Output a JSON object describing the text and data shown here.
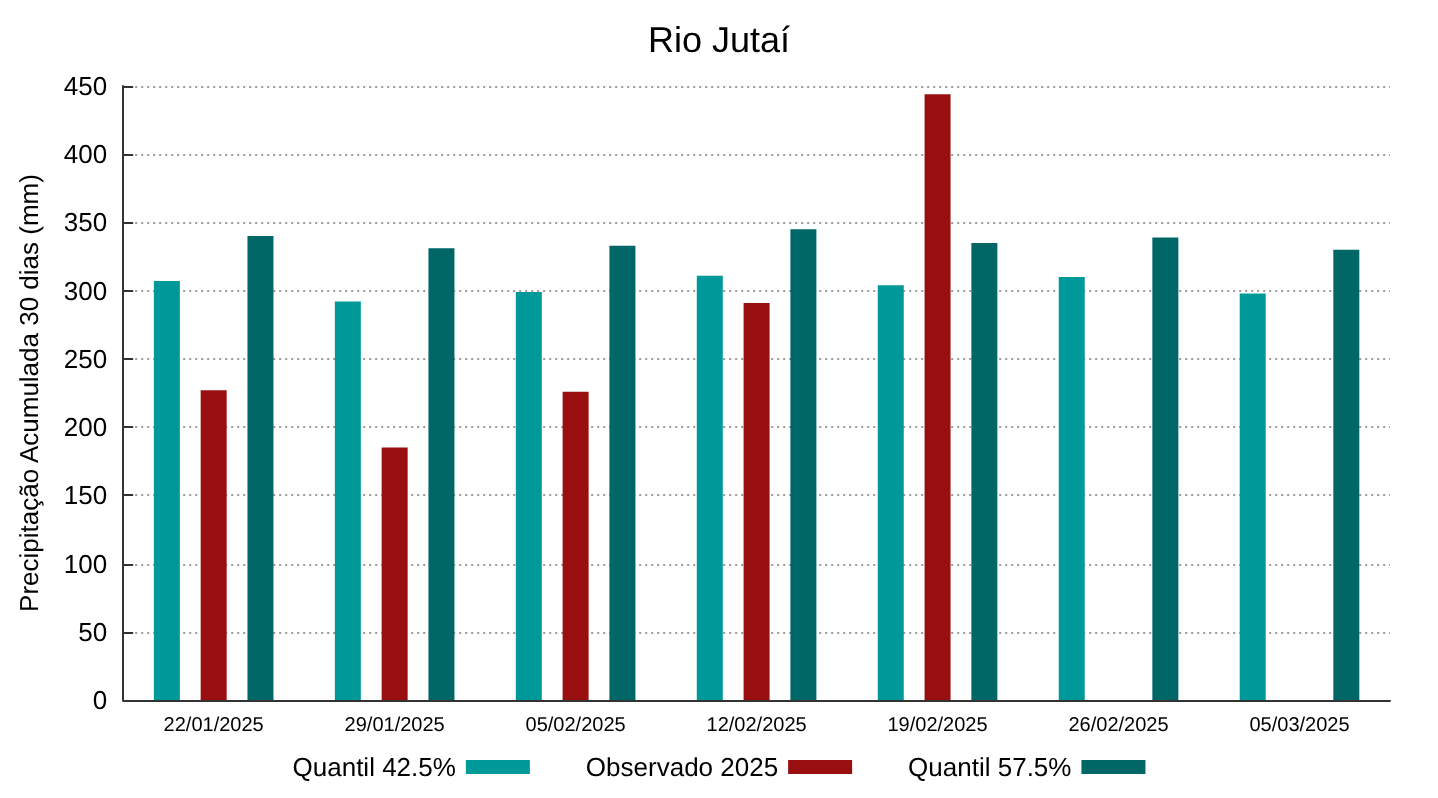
{
  "chart_data": {
    "type": "bar",
    "title": "Rio Jutaí",
    "ylabel": "Precipitação Acumulada 30 dias (mm)",
    "categories": [
      "22/01/2025",
      "29/01/2025",
      "05/02/2025",
      "12/02/2025",
      "19/02/2025",
      "26/02/2025",
      "05/03/2025"
    ],
    "series": [
      {
        "name": "Quantil 42.5%",
        "color": "#009999",
        "values": [
          307,
          292,
          299,
          311,
          304,
          310,
          298
        ]
      },
      {
        "name": "Observado 2025",
        "color": "#990f0f",
        "values": [
          227,
          185,
          226,
          291,
          444,
          null,
          null
        ]
      },
      {
        "name": "Quantil 57.5%",
        "color": "#006666",
        "values": [
          340,
          331,
          333,
          345,
          335,
          339,
          330
        ]
      }
    ],
    "ylim": [
      0,
      450
    ],
    "yticks": [
      0,
      50,
      100,
      150,
      200,
      250,
      300,
      350,
      400,
      450
    ],
    "grid": "y",
    "legend": "bottom"
  }
}
